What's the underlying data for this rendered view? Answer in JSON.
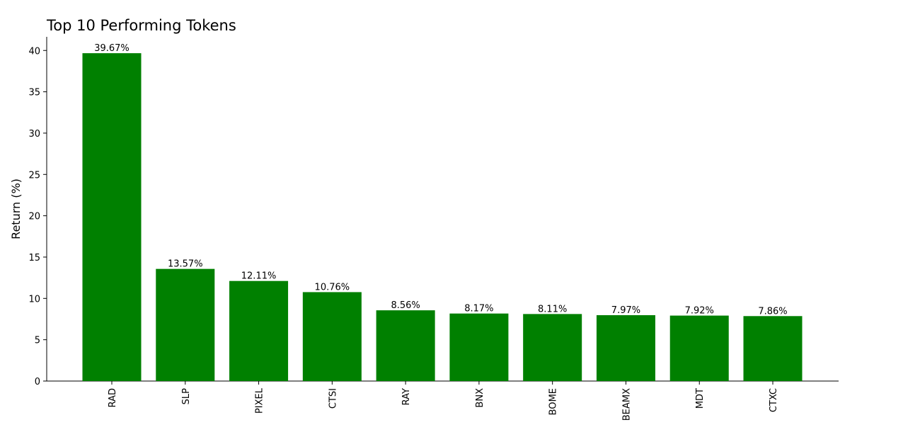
{
  "chart_data": {
    "type": "bar",
    "title": "Top 10 Performing Tokens",
    "y_label": "Return (%)",
    "categories": [
      "RAD",
      "SLP",
      "PIXEL",
      "CTSI",
      "RAY",
      "BNX",
      "BOME",
      "BEAMX",
      "MDT",
      "CTXC"
    ],
    "values": [
      39.67,
      13.57,
      12.11,
      10.76,
      8.56,
      8.17,
      8.11,
      7.97,
      7.92,
      7.86
    ],
    "value_labels": [
      "39.67%",
      "13.57%",
      "12.11%",
      "10.76%",
      "8.56%",
      "8.17%",
      "8.11%",
      "7.97%",
      "7.92%",
      "7.86%"
    ],
    "color": "#008000",
    "ylim": [
      0,
      41.65
    ],
    "yticks": [
      0,
      5,
      10,
      15,
      20,
      25,
      30,
      35,
      40
    ],
    "grid": false
  }
}
